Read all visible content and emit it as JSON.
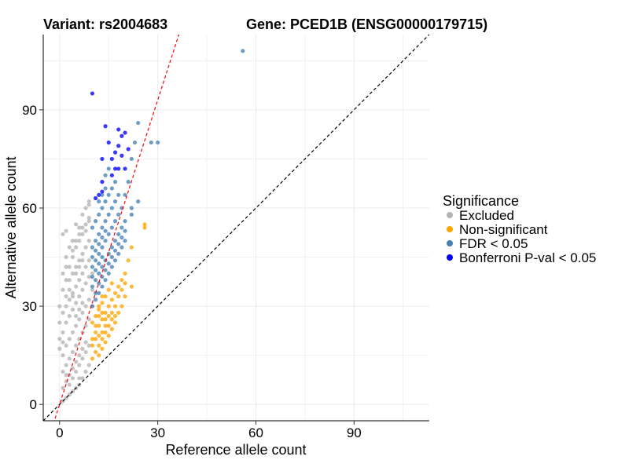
{
  "chart_data": {
    "type": "scatter",
    "title_left": "Variant: rs2004683",
    "title_right": "Gene: PCED1B (ENSG00000179715)",
    "xlabel": "Reference allele count",
    "ylabel": "Alternative allele count",
    "xlim": [
      -5,
      113
    ],
    "ylim": [
      -5,
      113
    ],
    "xticks": [
      0,
      30,
      60,
      90
    ],
    "yticks": [
      0,
      30,
      60,
      90
    ],
    "grid": true,
    "reference_lines": [
      {
        "name": "identity",
        "slope": 1,
        "intercept": 0,
        "color": "#000000",
        "style": "dashed"
      },
      {
        "name": "fitted",
        "slope": 3.1,
        "intercept": 0,
        "color": "#ff0000",
        "style": "dashed"
      }
    ],
    "legend": {
      "title": "Significance",
      "position": "right",
      "entries": [
        {
          "label": "Excluded",
          "color": "#b3b3b3"
        },
        {
          "label": "Non-significant",
          "color": "#ffa500"
        },
        {
          "label": "FDR < 0.05",
          "color": "#4682b4"
        },
        {
          "label": "Bonferroni P-val < 0.05",
          "color": "#0000ff"
        }
      ]
    },
    "series": [
      {
        "name": "Excluded",
        "color": "#b3b3b3",
        "points": [
          [
            1,
            1
          ],
          [
            2,
            2
          ],
          [
            3,
            3
          ],
          [
            1,
            5
          ],
          [
            2,
            7
          ],
          [
            3,
            9
          ],
          [
            4,
            11
          ],
          [
            5,
            13
          ],
          [
            1,
            10
          ],
          [
            2,
            12
          ],
          [
            3,
            14
          ],
          [
            4,
            16
          ],
          [
            5,
            18
          ],
          [
            6,
            20
          ],
          [
            7,
            22
          ],
          [
            8,
            24
          ],
          [
            9,
            26
          ],
          [
            1,
            15
          ],
          [
            2,
            18
          ],
          [
            3,
            20
          ],
          [
            4,
            22
          ],
          [
            5,
            24
          ],
          [
            6,
            26
          ],
          [
            7,
            28
          ],
          [
            8,
            30
          ],
          [
            9,
            32
          ],
          [
            0,
            20
          ],
          [
            1,
            22
          ],
          [
            2,
            25
          ],
          [
            3,
            27
          ],
          [
            4,
            29
          ],
          [
            5,
            31
          ],
          [
            6,
            33
          ],
          [
            7,
            35
          ],
          [
            8,
            37
          ],
          [
            9,
            39
          ],
          [
            2,
            30
          ],
          [
            3,
            32
          ],
          [
            4,
            34
          ],
          [
            5,
            36
          ],
          [
            6,
            38
          ],
          [
            7,
            40
          ],
          [
            8,
            42
          ],
          [
            9,
            44
          ],
          [
            3,
            38
          ],
          [
            4,
            40
          ],
          [
            5,
            42
          ],
          [
            6,
            44
          ],
          [
            7,
            46
          ],
          [
            8,
            48
          ],
          [
            9,
            50
          ],
          [
            1,
            35
          ],
          [
            2,
            38
          ],
          [
            3,
            42
          ],
          [
            4,
            45
          ],
          [
            5,
            48
          ],
          [
            6,
            50
          ],
          [
            7,
            52
          ],
          [
            8,
            55
          ],
          [
            9,
            57
          ],
          [
            2,
            45
          ],
          [
            3,
            48
          ],
          [
            4,
            50
          ],
          [
            1,
            52
          ],
          [
            2,
            53
          ],
          [
            5,
            55
          ],
          [
            6,
            54
          ],
          [
            7,
            58
          ],
          [
            8,
            60
          ],
          [
            9,
            62
          ],
          [
            2,
            9
          ],
          [
            3,
            6
          ],
          [
            4,
            8
          ],
          [
            5,
            10
          ],
          [
            6,
            12
          ],
          [
            7,
            14
          ],
          [
            8,
            16
          ],
          [
            9,
            18
          ],
          [
            6,
            15
          ],
          [
            7,
            17
          ],
          [
            8,
            19
          ],
          [
            5,
            27
          ],
          [
            6,
            29
          ],
          [
            7,
            31
          ],
          [
            4,
            33
          ],
          [
            3,
            35
          ],
          [
            5,
            40
          ],
          [
            6,
            42
          ],
          [
            7,
            44
          ],
          [
            4,
            47
          ],
          [
            5,
            50
          ],
          [
            6,
            52
          ],
          [
            7,
            54
          ],
          [
            0,
            25
          ],
          [
            0,
            30
          ],
          [
            1,
            28
          ],
          [
            2,
            33
          ],
          [
            8,
            10
          ],
          [
            9,
            12
          ],
          [
            7,
            8
          ],
          [
            6,
            6
          ],
          [
            1,
            40
          ],
          [
            2,
            42
          ],
          [
            0,
            17
          ],
          [
            1,
            19
          ],
          [
            4,
            4
          ],
          [
            5,
            5
          ],
          [
            6,
            8
          ],
          [
            9,
            56
          ],
          [
            8,
            53
          ],
          [
            9,
            61
          ],
          [
            10,
            30
          ],
          [
            10,
            35
          ],
          [
            10,
            40
          ]
        ]
      },
      {
        "name": "Non-significant",
        "color": "#ffa500",
        "points": [
          [
            10,
            14
          ],
          [
            11,
            16
          ],
          [
            12,
            18
          ],
          [
            13,
            20
          ],
          [
            14,
            22
          ],
          [
            15,
            24
          ],
          [
            16,
            26
          ],
          [
            10,
            20
          ],
          [
            11,
            22
          ],
          [
            12,
            24
          ],
          [
            13,
            26
          ],
          [
            14,
            28
          ],
          [
            15,
            30
          ],
          [
            16,
            32
          ],
          [
            17,
            34
          ],
          [
            18,
            36
          ],
          [
            10,
            25
          ],
          [
            11,
            27
          ],
          [
            12,
            29
          ],
          [
            13,
            31
          ],
          [
            14,
            33
          ],
          [
            15,
            35
          ],
          [
            16,
            37
          ],
          [
            19,
            38
          ],
          [
            20,
            40
          ],
          [
            12,
            15
          ],
          [
            13,
            17
          ],
          [
            14,
            19
          ],
          [
            15,
            21
          ],
          [
            17,
            25
          ],
          [
            18,
            28
          ],
          [
            19,
            30
          ],
          [
            20,
            33
          ],
          [
            22,
            36
          ],
          [
            22,
            48
          ],
          [
            26,
            54
          ],
          [
            26,
            55
          ],
          [
            21,
            44
          ],
          [
            11,
            20
          ],
          [
            12,
            21
          ],
          [
            13,
            22
          ],
          [
            14,
            24
          ],
          [
            16,
            28
          ],
          [
            17,
            30
          ],
          [
            15,
            27
          ],
          [
            18,
            33
          ],
          [
            19,
            35
          ],
          [
            20,
            37
          ],
          [
            12,
            30
          ],
          [
            13,
            28
          ],
          [
            10,
            18
          ],
          [
            11,
            24
          ],
          [
            12,
            27
          ],
          [
            13,
            33
          ],
          [
            14,
            26
          ],
          [
            16,
            23
          ],
          [
            17,
            27
          ]
        ]
      },
      {
        "name": "FDR < 0.05",
        "color": "#4682b4",
        "points": [
          [
            10,
            30
          ],
          [
            11,
            32
          ],
          [
            12,
            34
          ],
          [
            13,
            36
          ],
          [
            14,
            38
          ],
          [
            15,
            40
          ],
          [
            16,
            42
          ],
          [
            17,
            44
          ],
          [
            18,
            46
          ],
          [
            19,
            48
          ],
          [
            20,
            50
          ],
          [
            10,
            36
          ],
          [
            11,
            38
          ],
          [
            12,
            40
          ],
          [
            13,
            42
          ],
          [
            14,
            44
          ],
          [
            15,
            46
          ],
          [
            16,
            48
          ],
          [
            17,
            50
          ],
          [
            18,
            52
          ],
          [
            19,
            54
          ],
          [
            20,
            56
          ],
          [
            10,
            42
          ],
          [
            11,
            44
          ],
          [
            12,
            46
          ],
          [
            13,
            48
          ],
          [
            14,
            50
          ],
          [
            15,
            52
          ],
          [
            16,
            54
          ],
          [
            17,
            56
          ],
          [
            18,
            58
          ],
          [
            19,
            60
          ],
          [
            10,
            48
          ],
          [
            11,
            50
          ],
          [
            12,
            52
          ],
          [
            13,
            54
          ],
          [
            14,
            56
          ],
          [
            15,
            58
          ],
          [
            16,
            60
          ],
          [
            17,
            62
          ],
          [
            18,
            64
          ],
          [
            10,
            54
          ],
          [
            11,
            56
          ],
          [
            12,
            58
          ],
          [
            13,
            60
          ],
          [
            14,
            62
          ],
          [
            15,
            64
          ],
          [
            16,
            66
          ],
          [
            17,
            68
          ],
          [
            22,
            58
          ],
          [
            22,
            60
          ],
          [
            24,
            62
          ],
          [
            20,
            64
          ],
          [
            21,
            68
          ],
          [
            14,
            70
          ],
          [
            15,
            72
          ],
          [
            22,
            75
          ],
          [
            23,
            80
          ],
          [
            24,
            86
          ],
          [
            28,
            80
          ],
          [
            30,
            80
          ],
          [
            56,
            108
          ],
          [
            11,
            34
          ],
          [
            12,
            37
          ],
          [
            13,
            39
          ],
          [
            14,
            41
          ],
          [
            15,
            43
          ],
          [
            16,
            45
          ],
          [
            17,
            47
          ],
          [
            18,
            49
          ],
          [
            19,
            51
          ],
          [
            20,
            53
          ],
          [
            10,
            45
          ],
          [
            11,
            47
          ],
          [
            12,
            49
          ],
          [
            13,
            51
          ],
          [
            14,
            53
          ],
          [
            10,
            39
          ],
          [
            11,
            41
          ],
          [
            12,
            43
          ],
          [
            13,
            45
          ],
          [
            12,
            62
          ],
          [
            13,
            64
          ],
          [
            14,
            66
          ]
        ]
      },
      {
        "name": "Bonferroni P-val < 0.05",
        "color": "#0000ff",
        "points": [
          [
            10,
            95
          ],
          [
            14,
            85
          ],
          [
            15,
            80
          ],
          [
            18,
            84
          ],
          [
            19,
            82
          ],
          [
            20,
            83
          ],
          [
            17,
            77
          ],
          [
            16,
            75
          ],
          [
            18,
            79
          ],
          [
            19,
            76
          ],
          [
            21,
            78
          ],
          [
            13,
            75
          ],
          [
            17,
            72
          ],
          [
            18,
            72
          ],
          [
            20,
            72
          ],
          [
            16,
            70
          ],
          [
            13,
            65
          ],
          [
            11,
            63
          ],
          [
            12,
            64
          ],
          [
            13,
            68
          ]
        ]
      }
    ]
  }
}
